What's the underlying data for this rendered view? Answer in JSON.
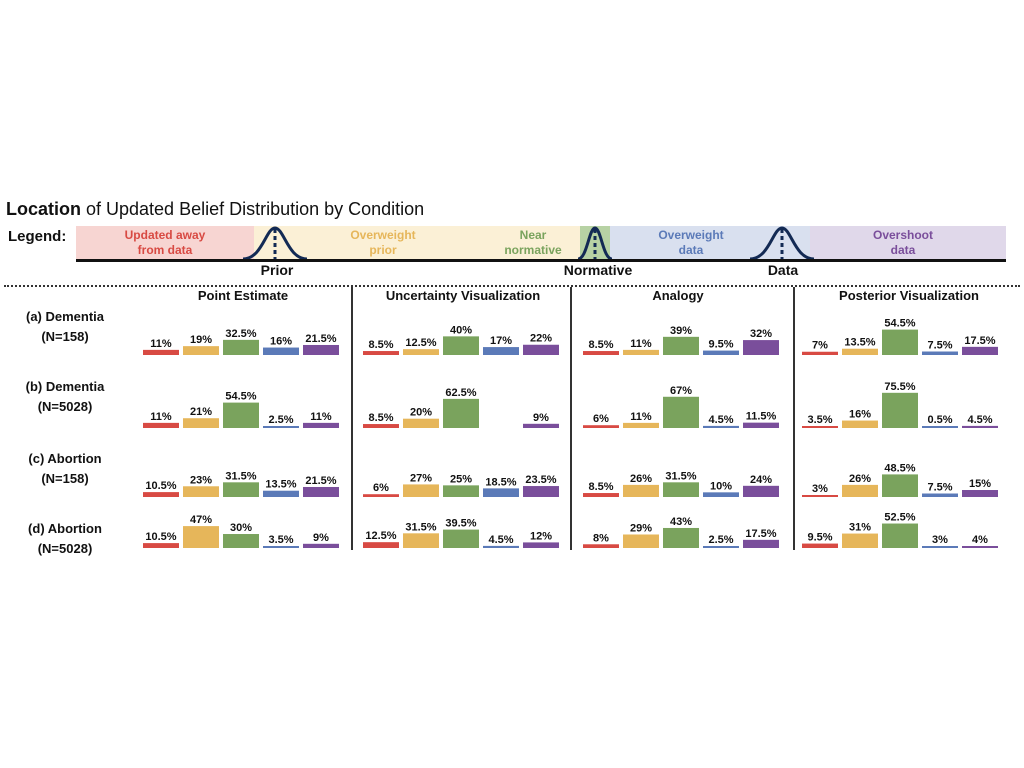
{
  "title": {
    "bold": "Location",
    "rest": " of Updated Belief Distribution by Condition"
  },
  "legend": {
    "label": "Legend:",
    "categories": [
      {
        "name": "Updated away\nfrom data",
        "color": "#d84a43",
        "bg": "#f7d5d2"
      },
      {
        "name": "Overweight\nprior",
        "color": "#e6b65a",
        "bg": "#fbf0d6"
      },
      {
        "name": "Near\nnormative",
        "color": "#7aa35d",
        "bg": "#d7e7cb"
      },
      {
        "name": "Overweight\ndata",
        "color": "#5b7ab8",
        "bg": "#d9e0ef"
      },
      {
        "name": "Overshoot\ndata",
        "color": "#7a4e9b",
        "bg": "#e0d8ea"
      }
    ],
    "markers": [
      "Prior",
      "Normative",
      "Data"
    ]
  },
  "chart_data": {
    "type": "bar",
    "categories": [
      "Updated away from data",
      "Overweight prior",
      "Near normative",
      "Overweight data",
      "Overshoot data"
    ],
    "columns": [
      "Point Estimate",
      "Uncertainty Visualization",
      "Analogy",
      "Posterior Visualization"
    ],
    "rows": [
      "(a) Dementia\n(N=158)",
      "(b) Dementia\n(N=5028)",
      "(c) Abortion\n(N=158)",
      "(d) Abortion\n(N=5028)"
    ],
    "values": [
      [
        [
          11,
          19,
          32.5,
          16,
          21.5
        ],
        [
          8.5,
          12.5,
          40,
          17,
          22
        ],
        [
          8.5,
          11,
          39,
          9.5,
          32
        ],
        [
          7,
          13.5,
          54.5,
          7.5,
          17.5
        ]
      ],
      [
        [
          11,
          21,
          54.5,
          2.5,
          11
        ],
        [
          8.5,
          20,
          62.5,
          0,
          9
        ],
        [
          6,
          11,
          67,
          4.5,
          11.5
        ],
        [
          3.5,
          16,
          75.5,
          0.5,
          4.5
        ]
      ],
      [
        [
          10.5,
          23,
          31.5,
          13.5,
          21.5
        ],
        [
          6,
          27,
          25,
          18.5,
          23.5
        ],
        [
          8.5,
          26,
          31.5,
          10,
          24
        ],
        [
          3,
          26,
          48.5,
          7.5,
          15
        ]
      ],
      [
        [
          10.5,
          47,
          30,
          3.5,
          9
        ],
        [
          12.5,
          31.5,
          39.5,
          4.5,
          12
        ],
        [
          8,
          29,
          43,
          2.5,
          17.5
        ],
        [
          9.5,
          31,
          52.5,
          3,
          4
        ]
      ]
    ],
    "labels": [
      [
        [
          "11%",
          "19%",
          "32.5%",
          "16%",
          "21.5%"
        ],
        [
          "8.5%",
          "12.5%",
          "40%",
          "17%",
          "22%"
        ],
        [
          "8.5%",
          "11%",
          "39%",
          "9.5%",
          "32%"
        ],
        [
          "7%",
          "13.5%",
          "54.5%",
          "7.5%",
          "17.5%"
        ]
      ],
      [
        [
          "11%",
          "21%",
          "54.5%",
          "2.5%",
          "11%"
        ],
        [
          "8.5%",
          "20%",
          "62.5%",
          "",
          "9%"
        ],
        [
          "6%",
          "11%",
          "67%",
          "4.5%",
          "11.5%"
        ],
        [
          "3.5%",
          "16%",
          "75.5%",
          "0.5%",
          "4.5%"
        ]
      ],
      [
        [
          "10.5%",
          "23%",
          "31.5%",
          "13.5%",
          "21.5%"
        ],
        [
          "6%",
          "27%",
          "25%",
          "18.5%",
          "23.5%"
        ],
        [
          "8.5%",
          "26%",
          "31.5%",
          "10%",
          "24%"
        ],
        [
          "3%",
          "26%",
          "48.5%",
          "7.5%",
          "15%"
        ]
      ],
      [
        [
          "10.5%",
          "47%",
          "30%",
          "3.5%",
          "9%"
        ],
        [
          "12.5%",
          "31.5%",
          "39.5%",
          "4.5%",
          "12%"
        ],
        [
          "8%",
          "29%",
          "43%",
          "2.5%",
          "17.5%"
        ],
        [
          "9.5%",
          "31%",
          "52.5%",
          "3%",
          "4%"
        ]
      ]
    ]
  }
}
